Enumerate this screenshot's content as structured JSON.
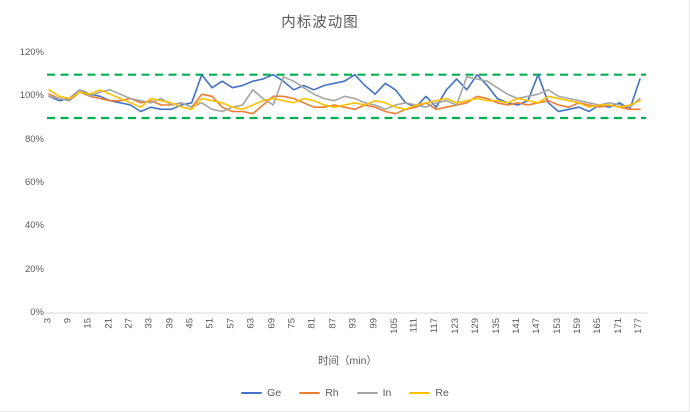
{
  "chart_data": {
    "type": "line",
    "title": "内标波动图",
    "xlabel": "时间（min）",
    "ylabel": "",
    "ylim": [
      0,
      120
    ],
    "y_unit": "%",
    "grid": false,
    "legend_position": "bottom",
    "y_tick_labels": [
      "0%",
      "20%",
      "40%",
      "60%",
      "80%",
      "100%",
      "120%"
    ],
    "y_tick_values": [
      0,
      20,
      40,
      60,
      80,
      100,
      120
    ],
    "x_range": [
      3,
      177
    ],
    "x_step": 3,
    "x_tick_labels": [
      "3",
      "9",
      "15",
      "21",
      "27",
      "33",
      "39",
      "45",
      "51",
      "57",
      "63",
      "69",
      "75",
      "81",
      "87",
      "93",
      "99",
      "105",
      "111",
      "117",
      "123",
      "129",
      "135",
      "141",
      "147",
      "153",
      "159",
      "165",
      "171",
      "177"
    ],
    "reference_lines": [
      {
        "name": "upper-limit",
        "value": 110,
        "color": "#00B050",
        "style": "dashed"
      },
      {
        "name": "lower-limit",
        "value": 90,
        "color": "#00B050",
        "style": "dashed"
      }
    ],
    "axis_color": "#D9D9D9",
    "text_color": "#595959",
    "series": [
      {
        "name": "Ge",
        "color": "#4472C4",
        "values": [
          100,
          98,
          99,
          103,
          101,
          100,
          98,
          97,
          96,
          93,
          95,
          94,
          94,
          96,
          97,
          110,
          104,
          107,
          104,
          105,
          107,
          108,
          110,
          107,
          103,
          105,
          103,
          105,
          106,
          107,
          110,
          105,
          101,
          106,
          103,
          97,
          95,
          100,
          95,
          103,
          108,
          103,
          110,
          105,
          99,
          97,
          96,
          98,
          110,
          97,
          93,
          94,
          95,
          93,
          96,
          95,
          97,
          94,
          108
        ]
      },
      {
        "name": "Rh",
        "color": "#ED7D31",
        "values": [
          101,
          99,
          98,
          102,
          100,
          99,
          98,
          98,
          99,
          97,
          98,
          96,
          96,
          97,
          95,
          101,
          100,
          95,
          93,
          93,
          92,
          96,
          100,
          100,
          99,
          97,
          95,
          95,
          96,
          95,
          94,
          96,
          95,
          93,
          92,
          94,
          95,
          97,
          94,
          95,
          96,
          97,
          100,
          99,
          97,
          96,
          97,
          96,
          97,
          98,
          96,
          95,
          97,
          96,
          95,
          96,
          95,
          94,
          94
        ]
      },
      {
        "name": "In",
        "color": "#A5A5A5",
        "values": [
          100,
          99,
          98,
          103,
          100,
          102,
          103,
          101,
          99,
          98,
          97,
          99,
          96,
          97,
          95,
          97,
          94,
          93,
          95,
          96,
          103,
          99,
          96,
          109,
          107,
          104,
          101,
          99,
          98,
          100,
          99,
          97,
          96,
          94,
          96,
          97,
          96,
          95,
          97,
          98,
          96,
          109,
          108,
          107,
          104,
          101,
          99,
          100,
          101,
          103,
          100,
          99,
          98,
          97,
          96,
          97,
          96,
          95,
          99
        ]
      },
      {
        "name": "Re",
        "color": "#FFC000",
        "values": [
          103,
          100,
          99,
          102,
          101,
          103,
          101,
          99,
          97,
          95,
          99,
          98,
          97,
          95,
          94,
          99,
          98,
          97,
          95,
          94,
          96,
          98,
          99,
          98,
          97,
          99,
          98,
          96,
          95,
          96,
          97,
          96,
          98,
          97,
          95,
          94,
          96,
          97,
          98,
          99,
          97,
          98,
          99,
          98,
          98,
          97,
          99,
          98,
          97,
          100,
          99,
          98,
          97,
          95,
          96,
          96,
          95,
          96,
          98
        ]
      }
    ]
  }
}
